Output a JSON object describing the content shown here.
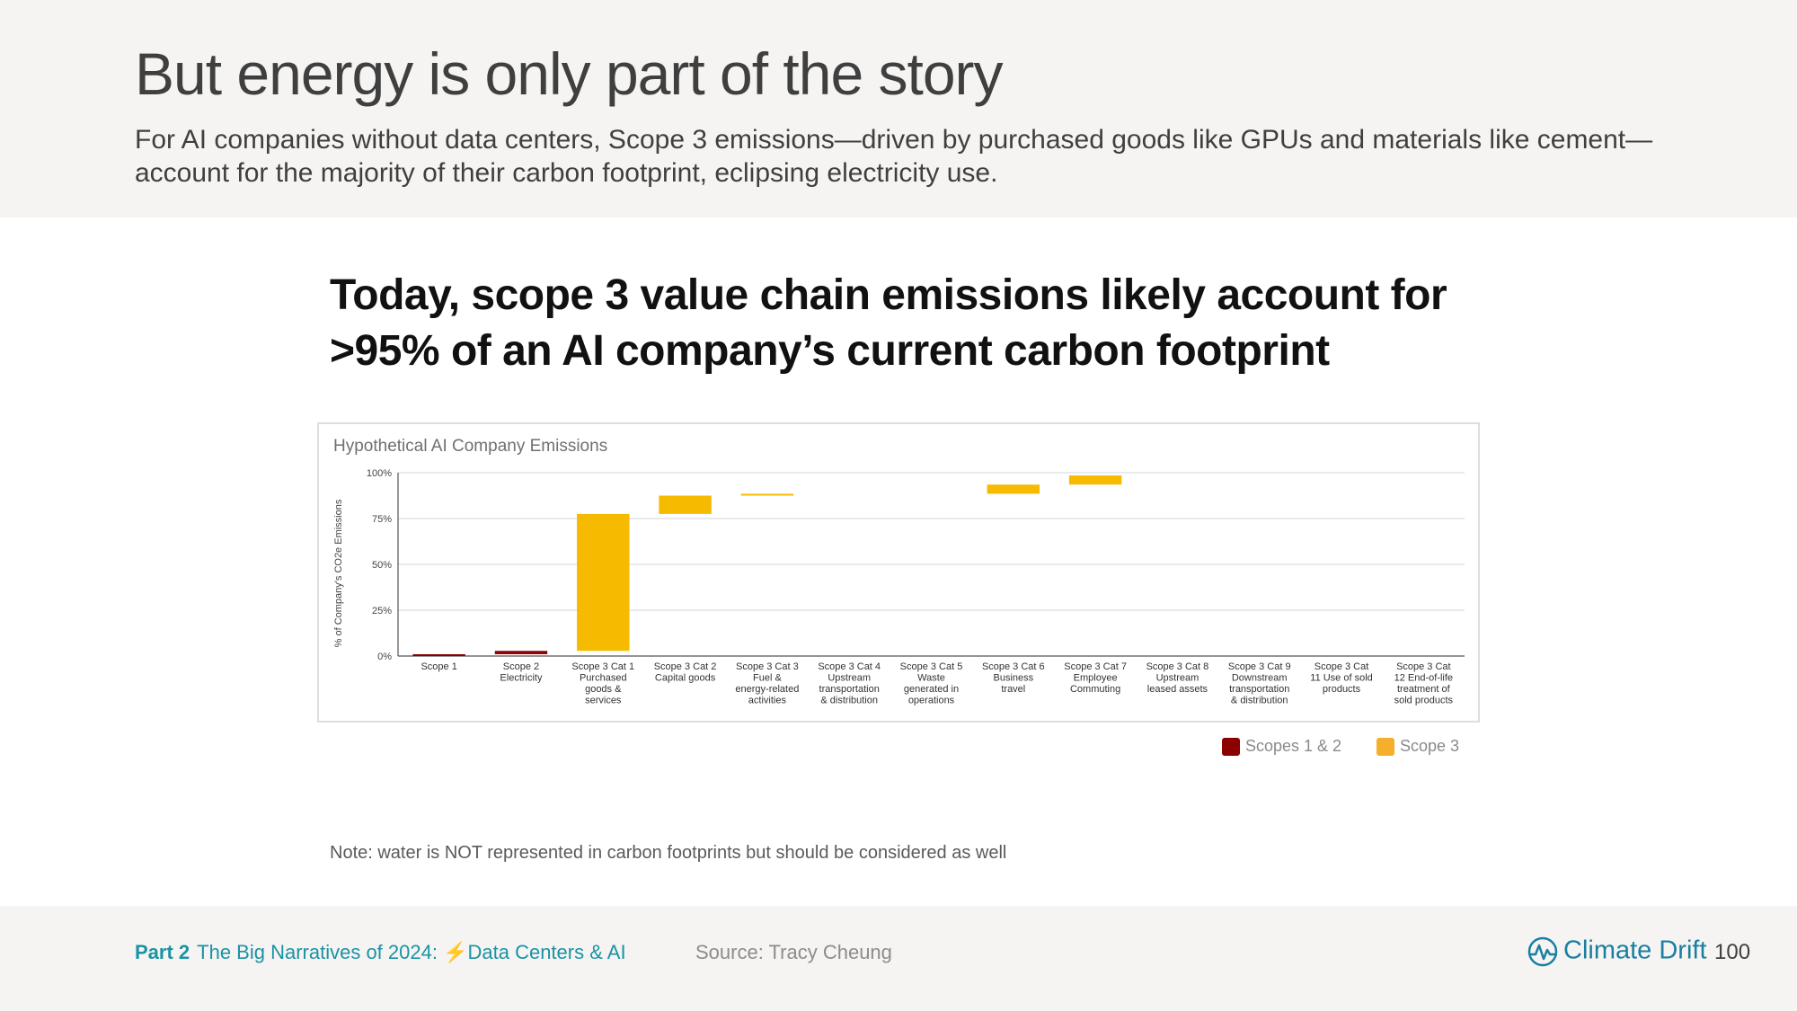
{
  "header": {
    "title": "But energy is only part of the story",
    "subtitle": "For AI companies without data centers, Scope 3 emissions—driven by purchased goods like GPUs and materials like cement—account for the majority of their carbon footprint, eclipsing electricity use."
  },
  "headline": "Today, scope 3 value chain emissions likely account for >95% of an AI company’s current carbon footprint",
  "chart_data": {
    "type": "bar",
    "subtype": "waterfall",
    "title": "Hypothetical AI Company Emissions",
    "xlabel": "",
    "ylabel": "% of Company's CO2e Emissions",
    "ylim": [
      0,
      100
    ],
    "yticks": [
      "0%",
      "25%",
      "50%",
      "75%",
      "100%"
    ],
    "grid": true,
    "legend_position": "bottom-right",
    "categories": [
      [
        "Scope 1"
      ],
      [
        "Scope 2",
        "Electricity"
      ],
      [
        "Scope 3 Cat 1",
        "Purchased",
        "goods &",
        "services"
      ],
      [
        "Scope 3 Cat 2",
        "Capital goods"
      ],
      [
        "Scope 3 Cat 3",
        "Fuel &",
        "energy-related",
        "activities"
      ],
      [
        "Scope 3 Cat 4",
        "Upstream",
        "transportation",
        "& distribution"
      ],
      [
        "Scope 3 Cat 5",
        "Waste",
        "generated in",
        "operations"
      ],
      [
        "Scope 3 Cat 6",
        "Business",
        "travel"
      ],
      [
        "Scope 3 Cat 7",
        "Employee",
        "Commuting"
      ],
      [
        "Scope 3 Cat 8",
        "Upstream",
        "leased assets"
      ],
      [
        "Scope 3 Cat 9",
        "Downstream",
        "transportation",
        "& distribution"
      ],
      [
        "Scope 3 Cat",
        "11 Use of sold",
        "products"
      ],
      [
        "Scope 3 Cat",
        "12 End-of-life",
        "treatment of",
        "sold products"
      ]
    ],
    "series": [
      {
        "name": "Scopes 1 & 2",
        "color": "#8b0000",
        "bars": [
          {
            "category_index": 0,
            "start": 0.0,
            "end": 0.8
          },
          {
            "category_index": 1,
            "start": 1.0,
            "end": 2.8
          }
        ]
      },
      {
        "name": "Scope 3",
        "color": "#f6bb00",
        "bars": [
          {
            "category_index": 2,
            "start": 2.8,
            "end": 77.5
          },
          {
            "category_index": 3,
            "start": 77.5,
            "end": 87.5
          },
          {
            "category_index": 4,
            "start": 87.5,
            "end": 88.5
          },
          {
            "category_index": 7,
            "start": 88.5,
            "end": 93.5
          },
          {
            "category_index": 8,
            "start": 93.5,
            "end": 98.5
          }
        ]
      }
    ],
    "legend": [
      {
        "label": "Scopes 1 & 2",
        "color": "#8b0000"
      },
      {
        "label": "Scope 3",
        "color": "#f6ae2d"
      }
    ]
  },
  "note": "Note: water is NOT represented in carbon footprints but should be considered as well",
  "footer": {
    "part_label": "Part 2",
    "section_pre": "The Big Narratives of 2024: ",
    "bolt": "⚡",
    "section_post": "Data Centers & AI",
    "source": "Source: Tracy Cheung",
    "brand": "Climate Drift",
    "page": "100"
  }
}
